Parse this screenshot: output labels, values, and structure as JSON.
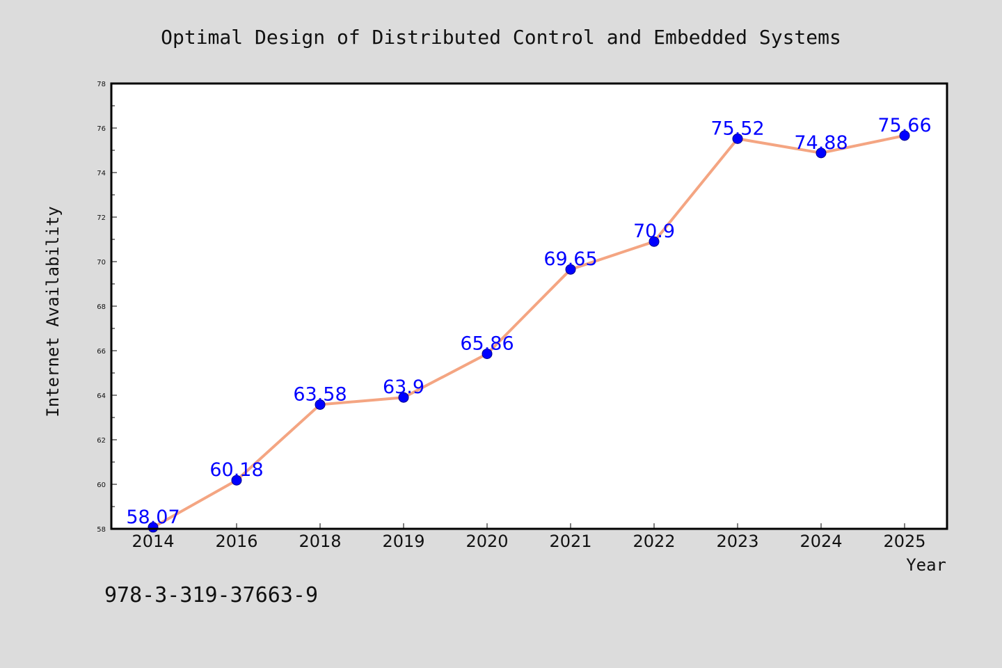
{
  "chart_data": {
    "type": "line",
    "title": "Optimal Design of Distributed Control and Embedded Systems",
    "xlabel": "Year",
    "ylabel": "Internet Availability",
    "categories": [
      "2014",
      "2016",
      "2018",
      "2019",
      "2020",
      "2021",
      "2022",
      "2023",
      "2024",
      "2025"
    ],
    "series": [
      {
        "values": [
          58.07,
          60.18,
          63.58,
          63.9,
          65.86,
          69.65,
          70.9,
          75.52,
          74.88,
          75.66
        ],
        "data_labels": [
          "58.07",
          "60.18",
          "63.58",
          "63.9",
          "65.86",
          "69.65",
          "70.9",
          "75.52",
          "74.88",
          "75.66"
        ]
      }
    ],
    "ylim": [
      58,
      78
    ],
    "yticks": [
      "58",
      "60",
      "62",
      "64",
      "66",
      "68",
      "70",
      "72",
      "74",
      "76",
      "78"
    ],
    "grid": false,
    "legend": "none",
    "colors": {
      "line": "#f4a582",
      "marker": "#0000ff",
      "marker_edge": "#00008b",
      "data_label": "#0000ff",
      "background": "#dcdcdc",
      "plot_background": "#ffffff"
    }
  },
  "footnote": "978-3-319-37663-9"
}
